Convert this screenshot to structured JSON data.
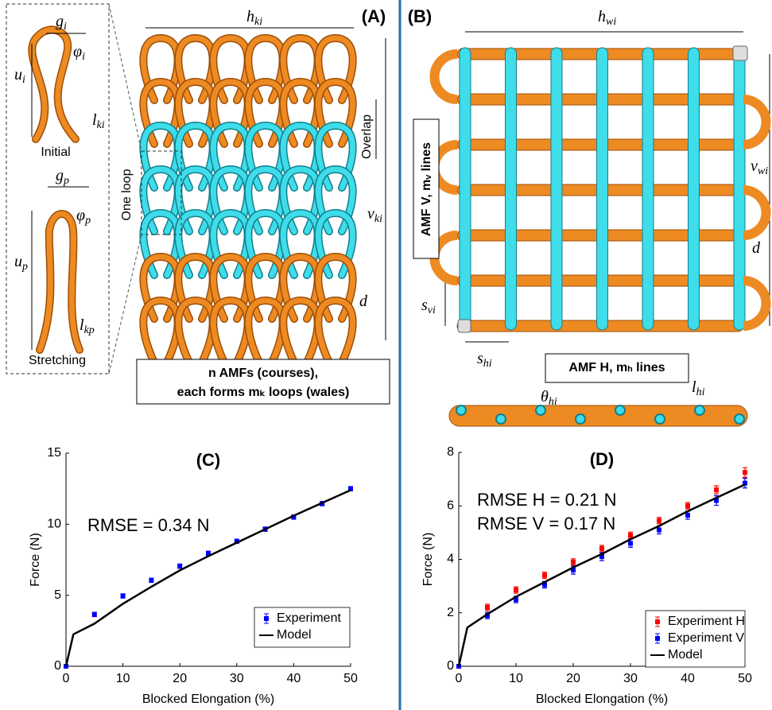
{
  "panel_a": {
    "label": "(A)",
    "texts": [
      "Initial",
      "Stretching",
      "One loop",
      "Overlap"
    ],
    "box": [
      "n AMFs (courses),",
      "each forms mₖ loops (wales)"
    ],
    "math": [
      {
        "base": "h",
        "sub": "ki"
      },
      {
        "base": "g",
        "sub": "i"
      },
      {
        "base": "u",
        "sub": "i"
      },
      {
        "base": "φ",
        "sub": "i"
      },
      {
        "base": "l",
        "sub": "ki"
      },
      {
        "base": "g",
        "sub": "p"
      },
      {
        "base": "u",
        "sub": "p"
      },
      {
        "base": "φ",
        "sub": "p"
      },
      {
        "base": "l",
        "sub": "kp"
      },
      {
        "base": "v",
        "sub": "ki"
      },
      {
        "base": "d",
        "sub": ""
      }
    ]
  },
  "panel_b": {
    "label": "(B)",
    "box_v": "AMF V, mᵥ lines",
    "box_h": "AMF H, mₕ lines",
    "math": [
      {
        "base": "h",
        "sub": "wi"
      },
      {
        "base": "v",
        "sub": "wi"
      },
      {
        "base": "d",
        "sub": ""
      },
      {
        "base": "s",
        "sub": "vi"
      },
      {
        "base": "s",
        "sub": "hi"
      },
      {
        "base": "θ",
        "sub": "hi"
      },
      {
        "base": "l",
        "sub": "hi"
      }
    ]
  },
  "chart_data": [
    {
      "type": "scatter",
      "title": "(C)",
      "xlabel": "Blocked Elongation (%)",
      "ylabel": "Force (N)",
      "xlim": [
        0,
        50
      ],
      "xticks": [
        0,
        10,
        20,
        30,
        40,
        50
      ],
      "ylim": [
        0,
        15
      ],
      "yticks": [
        0,
        5,
        10,
        15
      ],
      "annotations": [
        "RMSE = 0.34 N"
      ],
      "legend": "lower right",
      "series": [
        {
          "name": "Experiment",
          "mode": "markers",
          "color": "#0000ff",
          "x": [
            0,
            5,
            10,
            15,
            20,
            25,
            30,
            35,
            40,
            45,
            50
          ],
          "values": [
            0,
            3.65,
            4.95,
            6.05,
            7.05,
            7.95,
            8.8,
            9.65,
            10.5,
            11.45,
            12.5
          ],
          "errors": [
            0,
            0.15,
            0.15,
            0.15,
            0.15,
            0.15,
            0.15,
            0.15,
            0.15,
            0.15,
            0.15
          ]
        },
        {
          "name": "Model",
          "mode": "line",
          "color": "#000000",
          "x": [
            0,
            1.3,
            5,
            10,
            15,
            20,
            25,
            30,
            35,
            40,
            45,
            50
          ],
          "values": [
            0,
            2.25,
            3.0,
            4.4,
            5.6,
            6.75,
            7.75,
            8.7,
            9.65,
            10.6,
            11.5,
            12.4
          ]
        }
      ]
    },
    {
      "type": "scatter",
      "title": "(D)",
      "xlabel": "Blocked Elongation (%)",
      "ylabel": "Force (N)",
      "xlim": [
        0,
        50
      ],
      "xticks": [
        0,
        10,
        20,
        30,
        40,
        50
      ],
      "ylim": [
        0,
        8
      ],
      "yticks": [
        0,
        2,
        4,
        6,
        8
      ],
      "annotations": [
        "RMSE H = 0.21 N",
        "RMSE V = 0.17 N"
      ],
      "legend": "lower right",
      "series": [
        {
          "name": "Experiment H",
          "mode": "markers",
          "color": "#ff0000",
          "x": [
            0,
            5,
            10,
            15,
            20,
            25,
            30,
            35,
            40,
            45,
            50
          ],
          "values": [
            0,
            2.2,
            2.85,
            3.4,
            3.9,
            4.4,
            4.9,
            5.45,
            6.0,
            6.6,
            7.25
          ],
          "errors": [
            0,
            0.12,
            0.12,
            0.12,
            0.12,
            0.12,
            0.12,
            0.12,
            0.12,
            0.15,
            0.18
          ]
        },
        {
          "name": "Experiment V",
          "mode": "markers",
          "color": "#0000ff",
          "x": [
            0,
            5,
            10,
            15,
            20,
            25,
            30,
            35,
            40,
            45,
            50
          ],
          "values": [
            0,
            1.9,
            2.5,
            3.05,
            3.6,
            4.1,
            4.6,
            5.1,
            5.65,
            6.2,
            6.85
          ],
          "errors": [
            0,
            0.12,
            0.12,
            0.12,
            0.15,
            0.15,
            0.15,
            0.15,
            0.15,
            0.18,
            0.18
          ]
        },
        {
          "name": "Model",
          "mode": "line",
          "color": "#000000",
          "x": [
            0,
            1.5,
            5,
            10,
            15,
            20,
            25,
            30,
            35,
            40,
            45,
            50
          ],
          "values": [
            0,
            1.45,
            1.95,
            2.6,
            3.15,
            3.7,
            4.2,
            4.75,
            5.25,
            5.8,
            6.3,
            6.8
          ]
        }
      ]
    }
  ]
}
